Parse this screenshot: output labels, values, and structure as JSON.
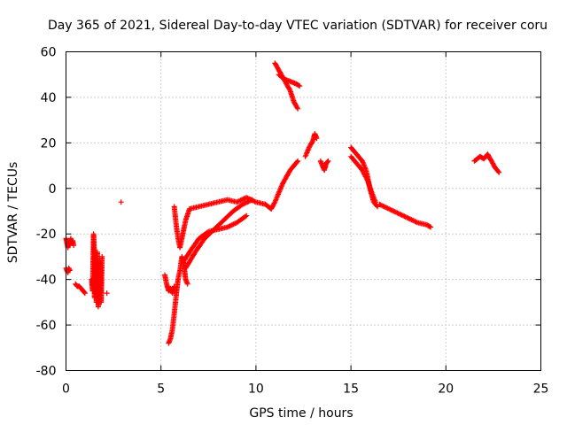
{
  "chart_data": {
    "type": "scatter",
    "title": "Day 365 of 2021, Sidereal Day-to-day VTEC variation (SDTVAR) for receiver coru",
    "xlabel": "GPS time / hours",
    "ylabel": "SDTVAR / TECUs",
    "xlim": [
      0,
      25
    ],
    "ylim": [
      -80,
      60
    ],
    "xticks": [
      0,
      5,
      10,
      15,
      20,
      25
    ],
    "yticks": [
      -80,
      -60,
      -40,
      -20,
      0,
      20,
      40,
      60
    ],
    "xtick_labels": [
      "0",
      "5",
      "10",
      "15",
      "20",
      "25"
    ],
    "ytick_labels": [
      "-80",
      "-60",
      "-40",
      "-20",
      "0",
      "20",
      "40",
      "60"
    ],
    "grid": true,
    "marker": "+",
    "color": "#ff0000",
    "series": [
      {
        "name": "SDTVAR",
        "segments": [
          [
            [
              0.0,
              -22
            ],
            [
              0.05,
              -24
            ],
            [
              0.1,
              -26
            ],
            [
              0.15,
              -23
            ],
            [
              0.2,
              -25
            ],
            [
              0.25,
              -22
            ],
            [
              0.3,
              -24
            ],
            [
              0.35,
              -23
            ],
            [
              0.4,
              -25
            ]
          ],
          [
            [
              0.0,
              -35
            ],
            [
              0.05,
              -36
            ],
            [
              0.1,
              -37
            ],
            [
              0.15,
              -35
            ],
            [
              0.2,
              -36
            ]
          ],
          [
            [
              0.5,
              -42
            ],
            [
              0.6,
              -43
            ],
            [
              0.7,
              -43
            ],
            [
              0.8,
              -44
            ],
            [
              0.9,
              -45
            ],
            [
              1.0,
              -46
            ]
          ],
          [
            [
              1.35,
              -40
            ],
            [
              1.4,
              -45
            ],
            [
              1.45,
              -20
            ],
            [
              1.5,
              -30
            ],
            [
              1.5,
              -48
            ],
            [
              1.55,
              -35
            ],
            [
              1.6,
              -50
            ],
            [
              1.65,
              -28
            ],
            [
              1.7,
              -52
            ],
            [
              1.75,
              -40
            ],
            [
              1.8,
              -32
            ],
            [
              1.85,
              -50
            ],
            [
              1.9,
              -30
            ]
          ],
          [
            [
              2.15,
              -46
            ]
          ],
          [
            [
              2.9,
              -6
            ]
          ],
          [
            [
              5.2,
              -38
            ],
            [
              5.3,
              -42
            ],
            [
              5.4,
              -45
            ],
            [
              5.5,
              -44
            ],
            [
              5.6,
              -46
            ],
            [
              5.7,
              -43
            ]
          ],
          [
            [
              5.4,
              -68
            ],
            [
              5.5,
              -66
            ],
            [
              5.6,
              -62
            ],
            [
              5.7,
              -55
            ],
            [
              5.8,
              -47
            ],
            [
              5.9,
              -40
            ],
            [
              6.0,
              -36
            ],
            [
              6.1,
              -30
            ],
            [
              6.2,
              -33
            ],
            [
              6.3,
              -40
            ],
            [
              6.4,
              -42
            ]
          ],
          [
            [
              5.7,
              -8
            ],
            [
              5.8,
              -16
            ],
            [
              5.9,
              -22
            ],
            [
              6.0,
              -26
            ],
            [
              6.1,
              -22
            ],
            [
              6.3,
              -14
            ],
            [
              6.5,
              -9
            ],
            [
              7.0,
              -8
            ],
            [
              7.5,
              -7
            ],
            [
              8.0,
              -6
            ],
            [
              8.5,
              -5
            ],
            [
              9.0,
              -6
            ],
            [
              9.5,
              -4
            ],
            [
              10.0,
              -6
            ],
            [
              10.5,
              -7
            ],
            [
              10.8,
              -9
            ]
          ],
          [
            [
              6.2,
              -32
            ],
            [
              6.5,
              -28
            ],
            [
              7.0,
              -22
            ],
            [
              7.5,
              -19
            ],
            [
              8.0,
              -18
            ],
            [
              8.5,
              -17
            ],
            [
              9.0,
              -15
            ],
            [
              9.5,
              -12
            ]
          ],
          [
            [
              6.3,
              -35
            ],
            [
              6.8,
              -28
            ],
            [
              7.3,
              -22
            ],
            [
              7.8,
              -18
            ],
            [
              8.3,
              -14
            ],
            [
              8.8,
              -10
            ],
            [
              9.3,
              -7
            ],
            [
              9.8,
              -5
            ]
          ],
          [
            [
              10.8,
              -9
            ],
            [
              11.0,
              -6
            ],
            [
              11.2,
              -2
            ],
            [
              11.4,
              2
            ],
            [
              11.6,
              5
            ],
            [
              11.8,
              8
            ],
            [
              12.0,
              10
            ],
            [
              12.2,
              12
            ]
          ],
          [
            [
              11.0,
              55
            ],
            [
              11.2,
              52
            ],
            [
              11.4,
              49
            ],
            [
              11.6,
              46
            ],
            [
              11.8,
              43
            ],
            [
              12.0,
              38
            ],
            [
              12.2,
              35
            ]
          ],
          [
            [
              11.2,
              50
            ],
            [
              11.5,
              48
            ],
            [
              11.8,
              47
            ],
            [
              12.1,
              46
            ],
            [
              12.3,
              45
            ]
          ],
          [
            [
              12.6,
              14
            ],
            [
              12.8,
              18
            ],
            [
              13.0,
              21
            ],
            [
              13.1,
              24
            ],
            [
              13.2,
              22
            ]
          ],
          [
            [
              13.4,
              12
            ],
            [
              13.5,
              10
            ],
            [
              13.6,
              8
            ],
            [
              13.7,
              11
            ],
            [
              13.8,
              12
            ]
          ],
          [
            [
              15.0,
              18
            ],
            [
              15.2,
              16
            ],
            [
              15.4,
              14
            ],
            [
              15.6,
              12
            ],
            [
              15.8,
              8
            ],
            [
              16.0,
              0
            ],
            [
              16.2,
              -6
            ],
            [
              16.4,
              -8
            ]
          ],
          [
            [
              15.0,
              14
            ],
            [
              15.3,
              11
            ],
            [
              15.6,
              8
            ],
            [
              15.9,
              3
            ],
            [
              16.1,
              -2
            ],
            [
              16.3,
              -6
            ]
          ],
          [
            [
              16.5,
              -7
            ],
            [
              17.0,
              -9
            ],
            [
              17.5,
              -11
            ],
            [
              18.0,
              -13
            ],
            [
              18.5,
              -15
            ],
            [
              19.0,
              -16
            ],
            [
              19.2,
              -17
            ]
          ],
          [
            [
              21.5,
              12
            ],
            [
              21.8,
              14
            ],
            [
              22.0,
              13
            ],
            [
              22.2,
              15
            ],
            [
              22.4,
              12
            ],
            [
              22.6,
              9
            ],
            [
              22.8,
              7
            ]
          ]
        ]
      }
    ]
  }
}
